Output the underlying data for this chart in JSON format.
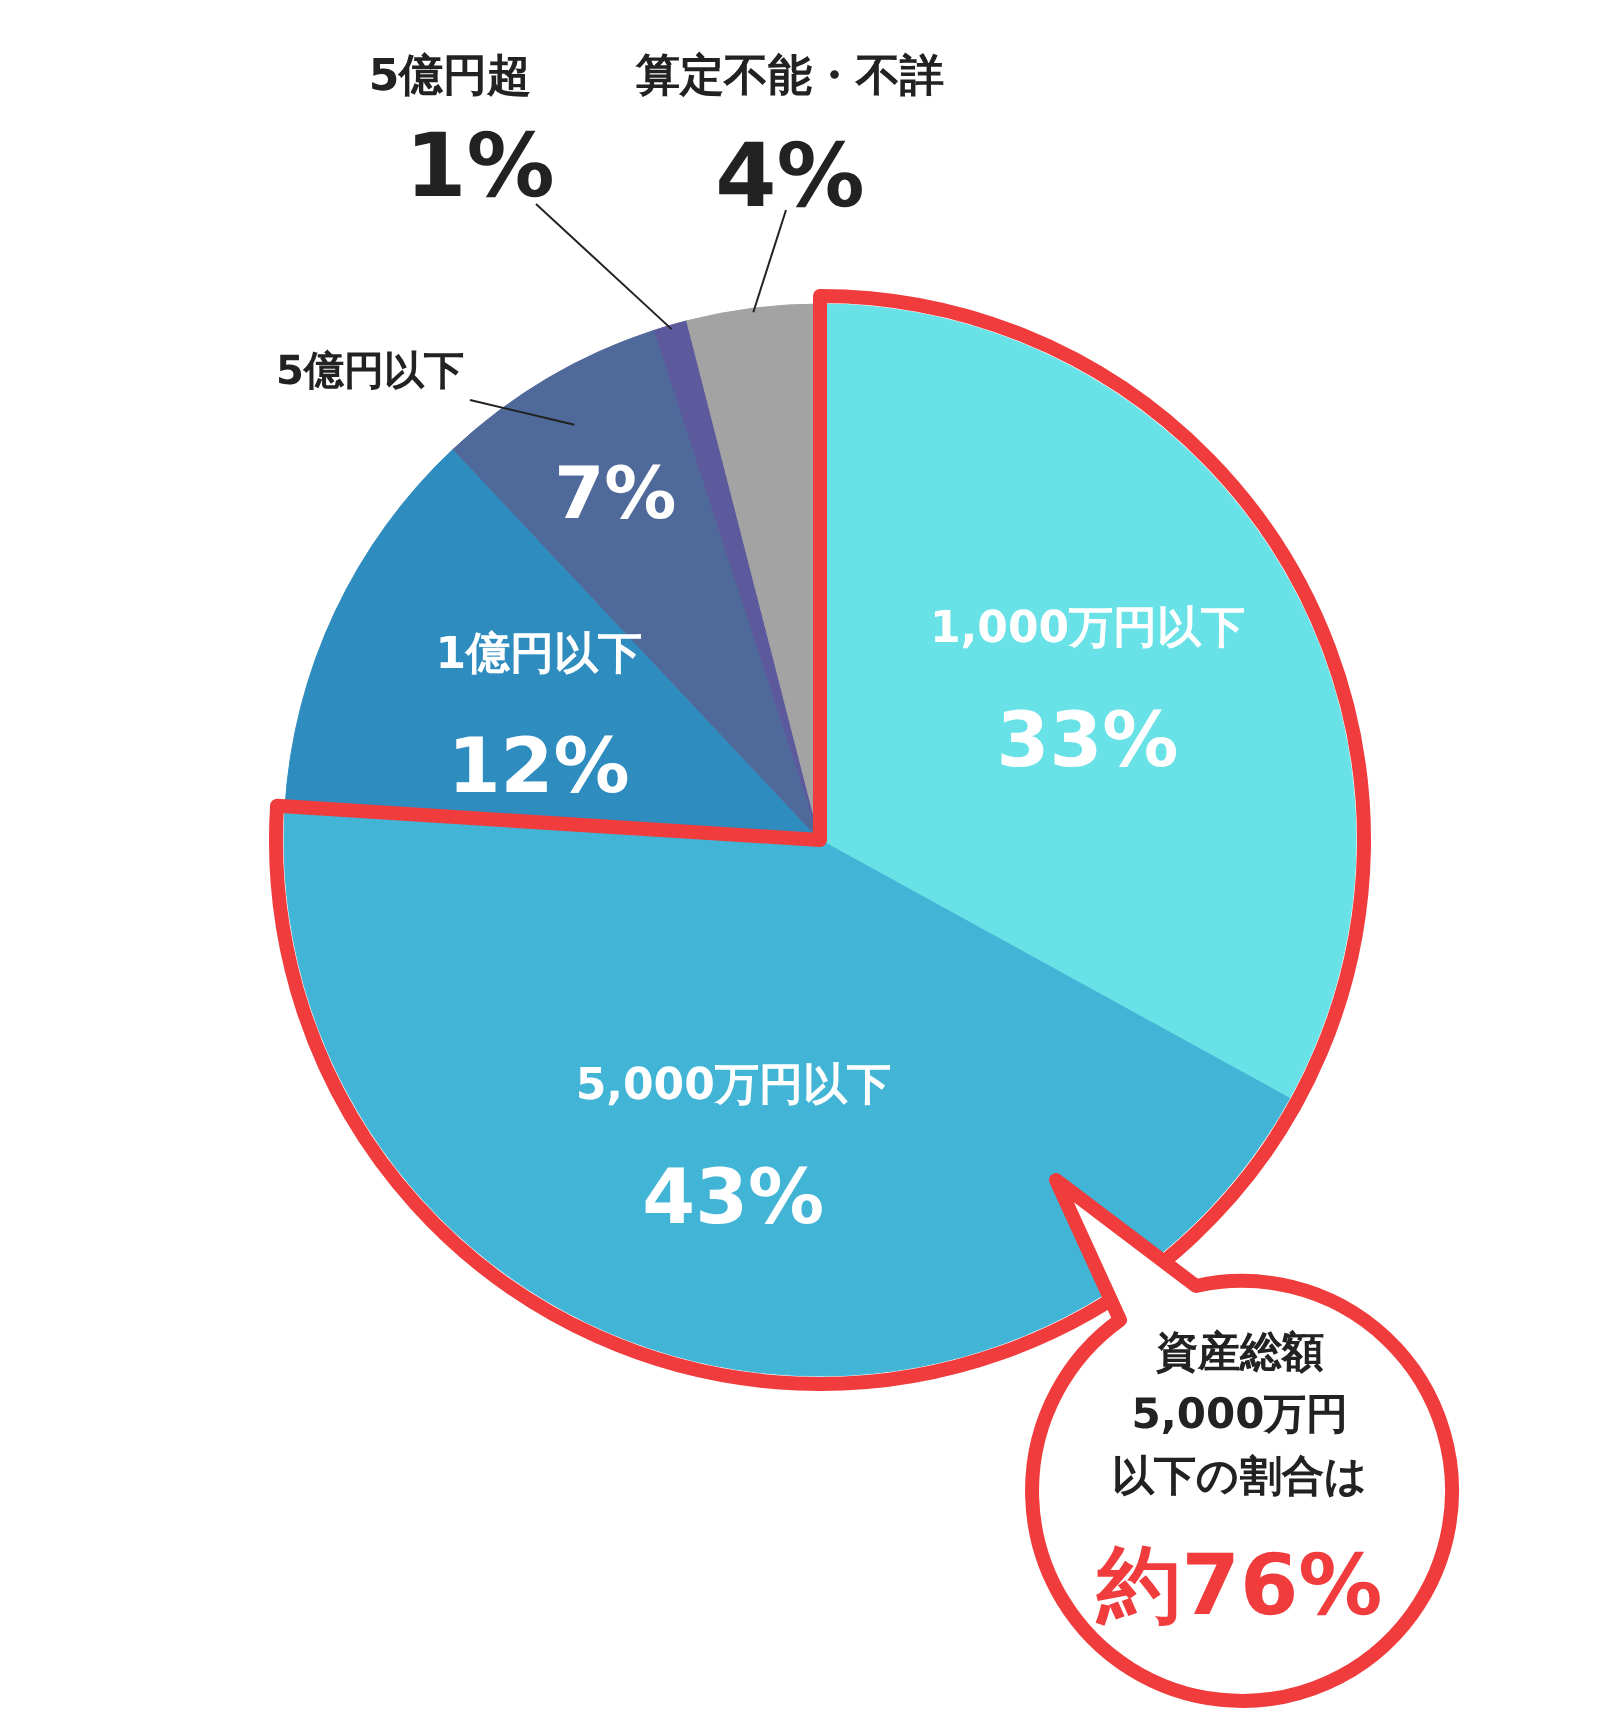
{
  "chart_data": {
    "type": "pie",
    "categories": [
      "1,000万円以下",
      "5,000万円以下",
      "1億円以下",
      "5億円以下",
      "5億円超",
      "算定不能・不詳"
    ],
    "values": [
      33,
      43,
      12,
      7,
      1,
      4
    ],
    "value_labels": [
      "33%",
      "43%",
      "12%",
      "7%",
      "1%",
      "4%"
    ],
    "colors": [
      "#68e2e6",
      "#42b5d6",
      "#2e8cbf",
      "#4f6a9a",
      "#5c5a9c",
      "#a3a3a3"
    ],
    "annotations": [
      "資産総額",
      "5,000万円",
      "以下の割合は",
      "約76%"
    ]
  }
}
